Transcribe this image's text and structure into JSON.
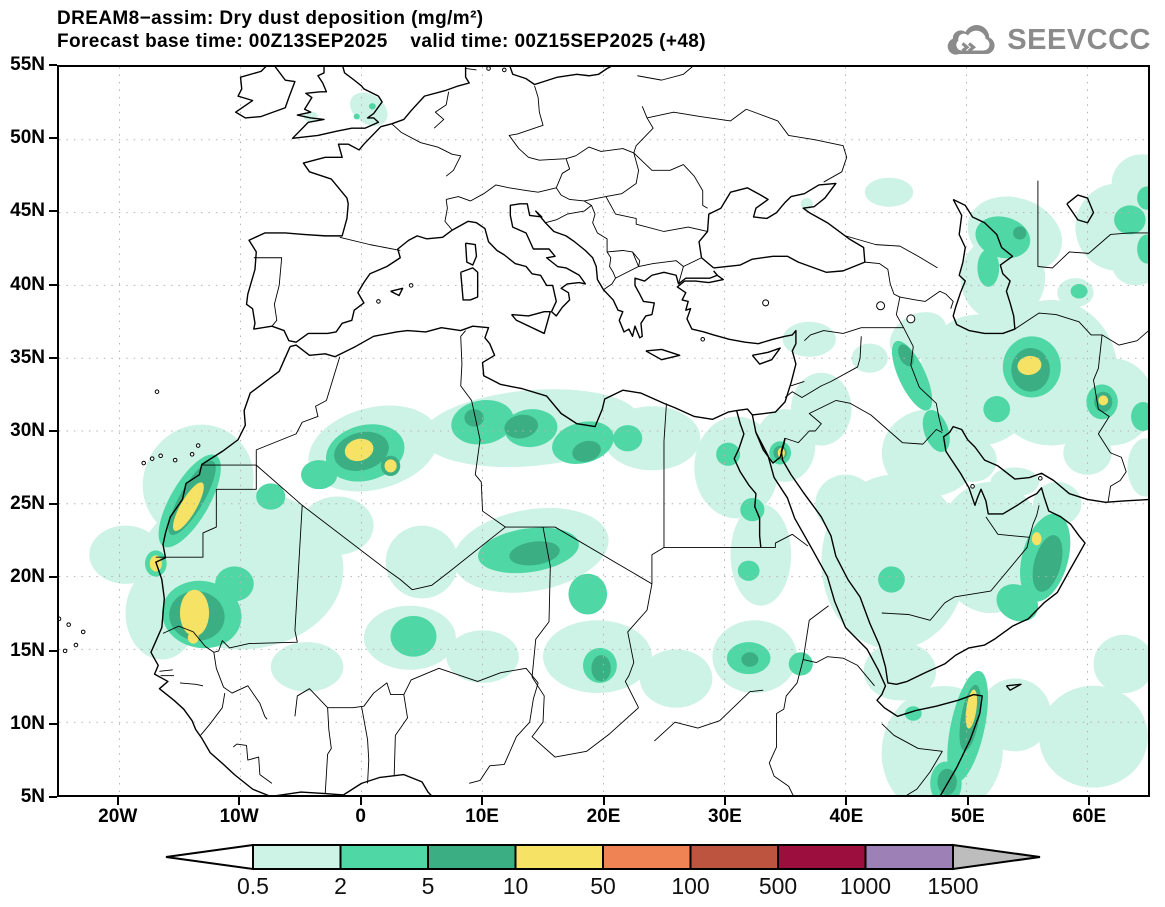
{
  "header": {
    "title": "DREAM8−assim: Dry dust deposition (mg/m²)",
    "subtitle": "Forecast base time: 00Z13SEP2025    valid time: 00Z15SEP2025 (+48)",
    "logo_text": "SEEVCCC",
    "logo_color": "#8b8b8b"
  },
  "axes": {
    "lat_labels": [
      "55N",
      "50N",
      "45N",
      "40N",
      "35N",
      "30N",
      "25N",
      "20N",
      "15N",
      "10N",
      "5N"
    ],
    "lat_values": [
      55,
      50,
      45,
      40,
      35,
      30,
      25,
      20,
      15,
      10,
      5
    ],
    "lon_labels": [
      "20W",
      "10W",
      "0",
      "10E",
      "20E",
      "30E",
      "40E",
      "50E",
      "60E"
    ],
    "lon_values": [
      -20,
      -10,
      0,
      10,
      20,
      30,
      40,
      50,
      60
    ]
  },
  "legend": {
    "labels": [
      "0.5",
      "2",
      "5",
      "10",
      "50",
      "100",
      "500",
      "1000",
      "1500"
    ]
  },
  "chart_data": {
    "type": "heatmap",
    "subtype": "filled-contour-geographic-map",
    "title": "DREAM8−assim: Dry dust deposition (mg/m²)",
    "model": "DREAM8-assim",
    "variable": "Dry dust deposition",
    "units": "mg/m²",
    "forecast_base_time": "00Z13SEP2025",
    "valid_time": "00Z15SEP2025",
    "forecast_offset_hours": 48,
    "lon_range_deg": [
      -25,
      65
    ],
    "lat_range_deg": [
      5,
      55
    ],
    "grid": "dotted graticule, 10 deg lon x 5 deg lat",
    "legend_position": "bottom",
    "contour_levels_mg_m2": [
      0.5,
      2,
      5,
      10,
      50,
      100,
      500,
      1000,
      1500
    ],
    "palette": [
      "#cdf2e6",
      "#4fd7a6",
      "#3bae83",
      "#f6e264",
      "#ef8354",
      "#bd5440",
      "#9c0e3d",
      "#9c80b6"
    ],
    "overflow_color": "#bdbdbd",
    "gridline_color": "#b4b4b4",
    "max_shaded_level_present_mg_m2": 10,
    "regions_format": "[lon_deg, lat_deg, rx_deg, ry_deg, rotation_deg] per shaded blob",
    "regions": {
      "0.5": [
        [
          -13.5,
          26.5,
          4.5,
          4,
          30
        ],
        [
          -10,
          20.5,
          8.5,
          5.5,
          0
        ],
        [
          -16.5,
          17.5,
          3,
          3.2,
          0
        ],
        [
          -19.5,
          21.5,
          3,
          2,
          0
        ],
        [
          1,
          28.8,
          5.5,
          2.8,
          -15
        ],
        [
          -2,
          23.5,
          3,
          2,
          0
        ],
        [
          5,
          21,
          3,
          2.5,
          0
        ],
        [
          14,
          30.2,
          9,
          2.6,
          -5
        ],
        [
          24,
          29.5,
          4,
          2.2,
          0
        ],
        [
          31,
          27.5,
          3.5,
          3.5,
          0
        ],
        [
          35,
          29,
          2.5,
          2.5,
          0
        ],
        [
          14,
          21.8,
          6.5,
          2.8,
          -10
        ],
        [
          19.5,
          14.5,
          4.5,
          2.5,
          0
        ],
        [
          4,
          15.8,
          3.8,
          2.2,
          0
        ],
        [
          -4.5,
          13.8,
          3,
          1.7,
          0
        ],
        [
          10,
          14.5,
          3,
          1.8,
          0
        ],
        [
          26,
          13,
          3,
          2,
          0
        ],
        [
          32.5,
          14.5,
          3.5,
          2.5,
          0
        ],
        [
          33,
          21.5,
          2.5,
          3.5,
          0
        ],
        [
          44,
          21,
          6,
          6,
          0
        ],
        [
          52,
          22,
          4.5,
          4.5,
          0
        ],
        [
          47,
          28.5,
          4,
          3,
          0
        ],
        [
          38,
          31.5,
          2.5,
          2.5,
          0
        ],
        [
          44.5,
          13.5,
          3,
          2,
          0
        ],
        [
          48,
          8,
          5,
          4.5,
          10
        ],
        [
          54,
          10.5,
          3,
          2.5,
          0
        ],
        [
          60.5,
          9,
          4.5,
          3.5,
          0
        ],
        [
          63,
          14,
          2.5,
          2,
          0
        ],
        [
          51,
          33.5,
          5,
          4.5,
          0
        ],
        [
          57,
          34,
          5.5,
          5,
          0
        ],
        [
          62,
          32,
          3.5,
          3,
          0
        ],
        [
          53,
          40.5,
          3.5,
          3,
          0
        ],
        [
          54,
          43.5,
          4,
          2.5,
          20
        ],
        [
          62.5,
          44,
          3.5,
          3,
          0
        ],
        [
          64.5,
          47,
          2.5,
          2,
          0
        ],
        [
          43.6,
          46.4,
          2,
          1,
          0
        ],
        [
          36.8,
          45.6,
          0.5,
          0.4,
          0
        ],
        [
          0.6,
          52.1,
          1.7,
          1,
          35
        ],
        [
          -4.2,
          51.6,
          0.6,
          0.35,
          0
        ],
        [
          37,
          36.3,
          2.2,
          1.2,
          0
        ],
        [
          64,
          41.5,
          2,
          1.5,
          0
        ],
        [
          59,
          39.5,
          1.5,
          1,
          0
        ],
        [
          64.8,
          27.5,
          1.5,
          2,
          0
        ],
        [
          60,
          28.5,
          2,
          1.5,
          0
        ],
        [
          42,
          35,
          1.5,
          1,
          0
        ],
        [
          46,
          36.5,
          2.5,
          1.5,
          -30
        ],
        [
          50.5,
          28,
          2,
          1.5,
          0
        ],
        [
          54,
          26.5,
          2,
          1,
          0
        ],
        [
          57.5,
          25,
          2,
          1.5,
          0
        ],
        [
          40,
          25,
          2.5,
          2,
          0
        ]
      ],
      "2": [
        [
          -14.2,
          25.2,
          1.6,
          3.6,
          30
        ],
        [
          -17,
          20.9,
          0.9,
          0.9,
          0
        ],
        [
          -13.2,
          17.4,
          3.3,
          2.3,
          10
        ],
        [
          -10.5,
          19.5,
          1.6,
          1.2,
          0
        ],
        [
          0.3,
          28.5,
          3.3,
          1.9,
          -15
        ],
        [
          -3.5,
          27,
          1.5,
          1,
          0
        ],
        [
          -7.5,
          25.5,
          1.2,
          0.9,
          0
        ],
        [
          10,
          30.6,
          2.6,
          1.5,
          -10
        ],
        [
          14,
          30.2,
          2.2,
          1.3,
          -5
        ],
        [
          18.3,
          29.2,
          2.6,
          1.4,
          -15
        ],
        [
          22,
          29.5,
          1.2,
          0.9,
          0
        ],
        [
          13.8,
          21.8,
          4.2,
          1.5,
          -8
        ],
        [
          18.7,
          18.8,
          1.6,
          1.4,
          0
        ],
        [
          19.7,
          13.9,
          1.4,
          1.2,
          0
        ],
        [
          4.3,
          15.9,
          1.9,
          1.4,
          0
        ],
        [
          30.3,
          28.4,
          1,
          0.8,
          0
        ],
        [
          34.6,
          28.5,
          0.9,
          0.8,
          0
        ],
        [
          32.3,
          24.6,
          1,
          0.8,
          0
        ],
        [
          32,
          20.4,
          0.9,
          0.7,
          0
        ],
        [
          32,
          14.4,
          1.8,
          1.1,
          0
        ],
        [
          36.3,
          14,
          1,
          0.8,
          0
        ],
        [
          43.8,
          19.8,
          1.1,
          0.9,
          0
        ],
        [
          45.5,
          33.8,
          1.1,
          2.6,
          -25
        ],
        [
          47.5,
          30,
          1,
          1.5,
          -20
        ],
        [
          55.4,
          34.4,
          2.4,
          2.1,
          0
        ],
        [
          52.5,
          31.5,
          1.1,
          0.9,
          0
        ],
        [
          61.2,
          32,
          1.3,
          1.2,
          0
        ],
        [
          64.6,
          31,
          1,
          1,
          0
        ],
        [
          56.5,
          21.3,
          1.9,
          3.1,
          15
        ],
        [
          54.2,
          18.2,
          1.8,
          1.2,
          30
        ],
        [
          50.1,
          9.7,
          1.4,
          3.9,
          12
        ],
        [
          48.3,
          5.8,
          1.3,
          1.5,
          0
        ],
        [
          45.6,
          10.6,
          0.7,
          0.5,
          0
        ],
        [
          53,
          43.3,
          2.3,
          1.4,
          15
        ],
        [
          51.8,
          41.2,
          0.9,
          1.3,
          0
        ],
        [
          59.3,
          39.6,
          0.7,
          0.5,
          0
        ],
        [
          63.5,
          44.5,
          1.3,
          1,
          0
        ],
        [
          64.9,
          42.5,
          0.8,
          1,
          0
        ],
        [
          0.9,
          52.3,
          0.28,
          0.22,
          0
        ],
        [
          -0.4,
          51.6,
          0.25,
          0.2,
          0
        ],
        [
          64.9,
          46,
          0.8,
          0.8,
          0
        ]
      ],
      "5": [
        [
          -14,
          25.4,
          1,
          2.9,
          30
        ],
        [
          -13.6,
          17.3,
          2.3,
          1.7,
          10
        ],
        [
          0,
          28.6,
          2.3,
          1.3,
          -15
        ],
        [
          2.4,
          27.6,
          0.8,
          0.7,
          0
        ],
        [
          13.2,
          30.3,
          1.4,
          0.8,
          -10
        ],
        [
          18.6,
          28.6,
          1.2,
          0.7,
          -15
        ],
        [
          9.3,
          30.9,
          0.8,
          0.6,
          0
        ],
        [
          14.3,
          21.6,
          2.1,
          0.8,
          -8
        ],
        [
          19.8,
          13.7,
          0.8,
          0.9,
          0
        ],
        [
          34.6,
          28.5,
          0.55,
          0.5,
          0
        ],
        [
          45,
          35.2,
          0.55,
          0.8,
          -25
        ],
        [
          55.3,
          34.2,
          1.6,
          1.5,
          0
        ],
        [
          61.3,
          32,
          0.75,
          0.7,
          0
        ],
        [
          56.7,
          20.9,
          1.1,
          2,
          15
        ],
        [
          50.3,
          10.3,
          0.75,
          2.3,
          10
        ],
        [
          48.4,
          5.9,
          0.8,
          0.9,
          0
        ],
        [
          54.4,
          43.6,
          0.55,
          0.45,
          0
        ],
        [
          32.1,
          14.3,
          0.7,
          0.5,
          0
        ]
      ],
      "10": [
        [
          -14.3,
          24.8,
          0.65,
          1.9,
          30
        ],
        [
          -17,
          20.9,
          0.5,
          0.55,
          0
        ],
        [
          -13.8,
          17.5,
          1.2,
          1.6,
          0
        ],
        [
          -13.9,
          15.8,
          0.45,
          0.4,
          0
        ],
        [
          -0.2,
          28.7,
          1.2,
          0.75,
          -15
        ],
        [
          2.4,
          27.6,
          0.5,
          0.45,
          0
        ],
        [
          34.7,
          28.5,
          0.3,
          0.35,
          0
        ],
        [
          55.2,
          34.5,
          1,
          0.65,
          -10
        ],
        [
          61.3,
          32.1,
          0.4,
          0.35,
          0
        ],
        [
          55.8,
          22.6,
          0.4,
          0.45,
          0
        ],
        [
          50.4,
          10.9,
          0.42,
          1.35,
          8
        ]
      ]
    }
  }
}
